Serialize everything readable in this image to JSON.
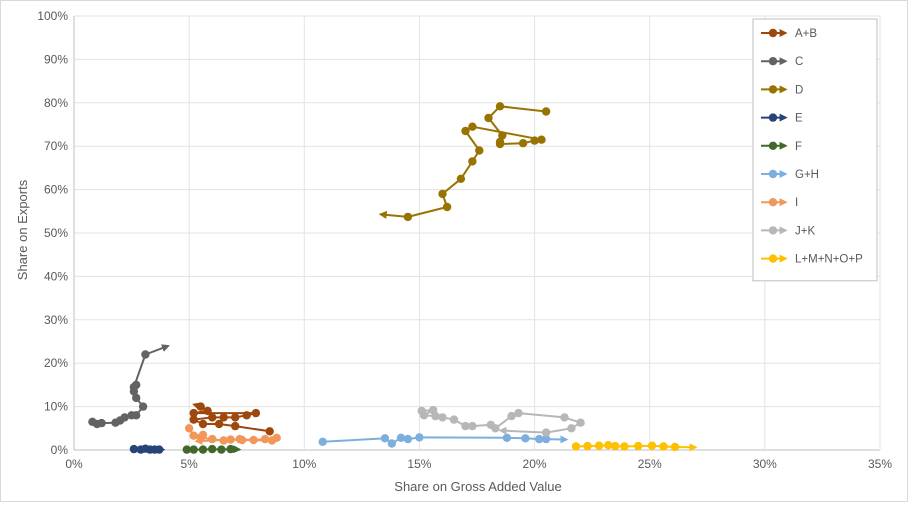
{
  "chart_data": {
    "type": "line",
    "xlabel": "Share on Gross Added Value",
    "ylabel": "Share on Exports",
    "xlim": [
      0,
      35
    ],
    "ylim": [
      0,
      100
    ],
    "x_ticks": [
      "0%",
      "5%",
      "10%",
      "15%",
      "20%",
      "25%",
      "30%",
      "35%"
    ],
    "y_ticks": [
      "0%",
      "10%",
      "20%",
      "30%",
      "40%",
      "50%",
      "60%",
      "70%",
      "80%",
      "90%",
      "100%"
    ],
    "grid": true,
    "legend_position": "right",
    "series": [
      {
        "name": "A+B",
        "color": "#9e480e",
        "points": [
          [
            8.5,
            4.3
          ],
          [
            7.0,
            5.5
          ],
          [
            6.3,
            6.0
          ],
          [
            5.6,
            6.0
          ],
          [
            5.2,
            7.0
          ],
          [
            6.0,
            7.5
          ],
          [
            6.5,
            7.5
          ],
          [
            7.0,
            7.5
          ],
          [
            7.5,
            8.0
          ],
          [
            7.9,
            8.5
          ],
          [
            5.2,
            8.5
          ],
          [
            5.8,
            9.0
          ],
          [
            5.5,
            10.0
          ],
          [
            5.2,
            10.5
          ]
        ]
      },
      {
        "name": "C",
        "color": "#636363",
        "points": [
          [
            0.8,
            6.5
          ],
          [
            1.0,
            6.0
          ],
          [
            1.2,
            6.2
          ],
          [
            1.8,
            6.3
          ],
          [
            2.0,
            6.8
          ],
          [
            2.2,
            7.5
          ],
          [
            2.5,
            8.0
          ],
          [
            2.7,
            8.0
          ],
          [
            3.0,
            10.0
          ],
          [
            2.7,
            12.0
          ],
          [
            2.6,
            13.5
          ],
          [
            2.7,
            15.0
          ],
          [
            2.6,
            14.5
          ],
          [
            3.1,
            22.0
          ],
          [
            4.1,
            24.0
          ]
        ]
      },
      {
        "name": "D",
        "color": "#997300",
        "points": [
          [
            20.5,
            78.0
          ],
          [
            18.5,
            79.2
          ],
          [
            18.0,
            76.5
          ],
          [
            18.6,
            72.5
          ],
          [
            18.5,
            71.0
          ],
          [
            18.5,
            70.5
          ],
          [
            19.5,
            70.7
          ],
          [
            20.0,
            71.3
          ],
          [
            20.3,
            71.5
          ],
          [
            17.3,
            74.5
          ],
          [
            17.0,
            73.5
          ],
          [
            17.6,
            69.0
          ],
          [
            17.3,
            66.5
          ],
          [
            16.8,
            62.5
          ],
          [
            16.0,
            59.0
          ],
          [
            16.2,
            56.0
          ],
          [
            14.5,
            53.7
          ],
          [
            13.3,
            54.3
          ]
        ]
      },
      {
        "name": "E",
        "color": "#264478",
        "points": [
          [
            2.6,
            0.2
          ],
          [
            2.9,
            0.1
          ],
          [
            3.1,
            0.3
          ],
          [
            3.3,
            0.1
          ],
          [
            3.5,
            0.1
          ],
          [
            3.7,
            0.1
          ],
          [
            3.9,
            0.1
          ]
        ]
      },
      {
        "name": "F",
        "color": "#43682b",
        "points": [
          [
            4.9,
            0.1
          ],
          [
            5.2,
            0.1
          ],
          [
            5.6,
            0.1
          ],
          [
            6.0,
            0.2
          ],
          [
            6.4,
            0.1
          ],
          [
            6.8,
            0.2
          ],
          [
            7.2,
            0.1
          ]
        ]
      },
      {
        "name": "G+H",
        "color": "#7cafdd",
        "points": [
          [
            10.8,
            1.9
          ],
          [
            13.5,
            2.7
          ],
          [
            13.8,
            1.5
          ],
          [
            14.2,
            2.8
          ],
          [
            14.5,
            2.5
          ],
          [
            15.0,
            2.9
          ],
          [
            18.8,
            2.8
          ],
          [
            19.6,
            2.7
          ],
          [
            20.2,
            2.5
          ],
          [
            20.5,
            2.5
          ],
          [
            21.4,
            2.4
          ]
        ]
      },
      {
        "name": "I",
        "color": "#f1975a",
        "points": [
          [
            5.0,
            5.0
          ],
          [
            5.2,
            3.3
          ],
          [
            5.6,
            3.5
          ],
          [
            5.5,
            2.8
          ],
          [
            6.0,
            2.5
          ],
          [
            6.5,
            2.2
          ],
          [
            7.2,
            2.5
          ],
          [
            7.8,
            2.3
          ],
          [
            8.3,
            2.5
          ],
          [
            8.8,
            2.8
          ],
          [
            8.6,
            2.2
          ],
          [
            7.3,
            2.3
          ],
          [
            6.8,
            2.4
          ],
          [
            5.3,
            2.0
          ]
        ]
      },
      {
        "name": "J+K",
        "color": "#b7b7b7",
        "points": [
          [
            15.1,
            9.0
          ],
          [
            15.6,
            9.2
          ],
          [
            15.2,
            8.0
          ],
          [
            15.7,
            7.8
          ],
          [
            16.0,
            7.5
          ],
          [
            16.5,
            7.0
          ],
          [
            17.0,
            5.5
          ],
          [
            17.3,
            5.5
          ],
          [
            18.1,
            5.8
          ],
          [
            18.3,
            5.0
          ],
          [
            19.0,
            7.8
          ],
          [
            19.3,
            8.5
          ],
          [
            21.3,
            7.5
          ],
          [
            22.0,
            6.3
          ],
          [
            21.6,
            5.0
          ],
          [
            20.5,
            4.0
          ],
          [
            18.5,
            4.5
          ]
        ]
      },
      {
        "name": "L+M+N+O+P",
        "color": "#ffc000",
        "points": [
          [
            21.8,
            0.8
          ],
          [
            22.3,
            0.9
          ],
          [
            22.8,
            1.0
          ],
          [
            23.2,
            1.1
          ],
          [
            23.5,
            0.9
          ],
          [
            23.9,
            0.8
          ],
          [
            24.5,
            0.9
          ],
          [
            25.1,
            1.0
          ],
          [
            25.6,
            0.8
          ],
          [
            26.1,
            0.7
          ],
          [
            27.0,
            0.6
          ]
        ]
      }
    ]
  }
}
